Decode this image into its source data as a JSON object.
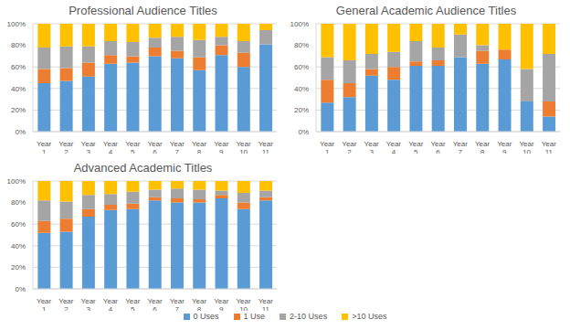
{
  "chart_data": [
    {
      "type": "bar",
      "title": "Professional Audience Titles",
      "stacked": true,
      "grid": true,
      "categories": [
        "Year 1",
        "Year 2",
        "Year 3",
        "Year 4",
        "Year 5",
        "Year 6",
        "Year 7",
        "Year 8",
        "Year 9",
        "Year 10",
        "Year 11"
      ],
      "ylim": [
        0,
        100
      ],
      "yticks": [
        {
          "value": 0,
          "label": "0%"
        },
        {
          "value": 20,
          "label": "20%"
        },
        {
          "value": 40,
          "label": "40%"
        },
        {
          "value": 60,
          "label": "60%"
        },
        {
          "value": 80,
          "label": "80%"
        },
        {
          "value": 100,
          "label": "100%"
        }
      ],
      "series": [
        {
          "name": "0 Uses",
          "color": "#5b9bd5",
          "values": [
            45,
            47,
            51,
            63,
            64,
            70,
            68,
            57,
            71,
            60,
            81
          ]
        },
        {
          "name": "1 Use",
          "color": "#ed7d31",
          "values": [
            13,
            12,
            13,
            8,
            6,
            8,
            7,
            12,
            9,
            13,
            0
          ]
        },
        {
          "name": "2-10 Uses",
          "color": "#a5a5a5",
          "values": [
            20,
            20,
            15,
            13,
            13,
            9,
            13,
            16,
            8,
            11,
            13
          ]
        },
        {
          "name": ">10 Uses",
          "color": "#ffc000",
          "values": [
            22,
            21,
            21,
            16,
            17,
            13,
            12,
            15,
            12,
            16,
            6
          ]
        }
      ]
    },
    {
      "type": "bar",
      "title": "General Academic Audience Titles",
      "stacked": true,
      "grid": true,
      "categories": [
        "Year 1",
        "Year 2",
        "Year 3",
        "Year 4",
        "Year 5",
        "Year 6",
        "Year 7",
        "Year 8",
        "Year 9",
        "Year 10",
        "Year 11"
      ],
      "ylim": [
        0,
        100
      ],
      "yticks": [
        {
          "value": 0,
          "label": "0%"
        },
        {
          "value": 20,
          "label": "20%"
        },
        {
          "value": 40,
          "label": "40%"
        },
        {
          "value": 60,
          "label": "60%"
        },
        {
          "value": 80,
          "label": "80%"
        },
        {
          "value": 100,
          "label": "100%"
        }
      ],
      "series": [
        {
          "name": "0 Uses",
          "color": "#5b9bd5",
          "values": [
            27,
            32,
            52,
            48,
            61,
            61,
            69,
            63,
            67,
            28,
            14
          ]
        },
        {
          "name": "1 Use",
          "color": "#ed7d31",
          "values": [
            21,
            13,
            6,
            12,
            4,
            5,
            0,
            12,
            9,
            0,
            14
          ]
        },
        {
          "name": "2-10 Uses",
          "color": "#a5a5a5",
          "values": [
            21,
            21,
            14,
            14,
            19,
            12,
            21,
            5,
            0,
            30,
            44
          ]
        },
        {
          "name": ">10 Uses",
          "color": "#ffc000",
          "values": [
            31,
            34,
            28,
            26,
            16,
            22,
            10,
            20,
            24,
            42,
            28
          ]
        }
      ]
    },
    {
      "type": "bar",
      "title": "Advanced Academic Titles",
      "stacked": true,
      "grid": true,
      "legend": "bottom",
      "categories": [
        "Year 1",
        "Year 2",
        "Year 3",
        "Year 4",
        "Year 5",
        "Year 6",
        "Year 7",
        "Year 8",
        "Year 9",
        "Year 10",
        "Year 11"
      ],
      "ylim": [
        0,
        100
      ],
      "yticks": [
        {
          "value": 0,
          "label": "0%"
        },
        {
          "value": 20,
          "label": "20%"
        },
        {
          "value": 40,
          "label": "40%"
        },
        {
          "value": 60,
          "label": "60%"
        },
        {
          "value": 80,
          "label": "80%"
        },
        {
          "value": 100,
          "label": "100%"
        }
      ],
      "series": [
        {
          "name": "0 Uses",
          "color": "#5b9bd5",
          "values": [
            52,
            53,
            67,
            73,
            74,
            82,
            80,
            80,
            84,
            74,
            82
          ]
        },
        {
          "name": "1 Use",
          "color": "#ed7d31",
          "values": [
            11,
            12,
            7,
            5,
            5,
            3,
            4,
            3,
            3,
            6,
            3
          ]
        },
        {
          "name": "2-10 Uses",
          "color": "#a5a5a5",
          "values": [
            19,
            16,
            13,
            10,
            11,
            7,
            9,
            9,
            4,
            9,
            6
          ]
        },
        {
          "name": ">10 Uses",
          "color": "#ffc000",
          "values": [
            18,
            19,
            13,
            12,
            10,
            8,
            7,
            8,
            9,
            11,
            9
          ]
        }
      ]
    }
  ]
}
